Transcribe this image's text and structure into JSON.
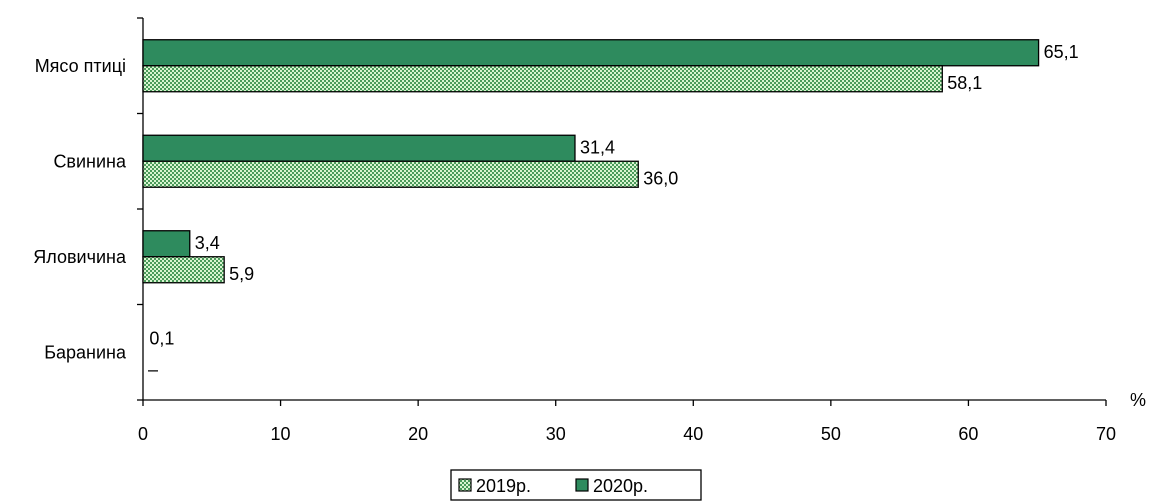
{
  "chart_data": {
    "type": "bar",
    "orientation": "horizontal",
    "categories": [
      "Мясо птиці",
      "Свинина",
      "Яловичина",
      "Баранина"
    ],
    "series": [
      {
        "name": "2019р.",
        "values": [
          58.1,
          36.0,
          5.9,
          null
        ],
        "labels": [
          "58,1",
          "36,0",
          "5,9",
          "–"
        ],
        "color": "#8fd694",
        "pattern": "checkered"
      },
      {
        "name": "2020р.",
        "values": [
          65.1,
          31.4,
          3.4,
          0.1
        ],
        "labels": [
          "65,1",
          "31,4",
          "3,4",
          "0,1"
        ],
        "color": "#2e8b5e",
        "pattern": "solid"
      }
    ],
    "x_ticks": [
      "0",
      "10",
      "20",
      "30",
      "40",
      "50",
      "60",
      "70"
    ],
    "xlim": [
      0,
      70
    ],
    "x_unit": "%",
    "legend": "bottom-center",
    "grid": false
  }
}
